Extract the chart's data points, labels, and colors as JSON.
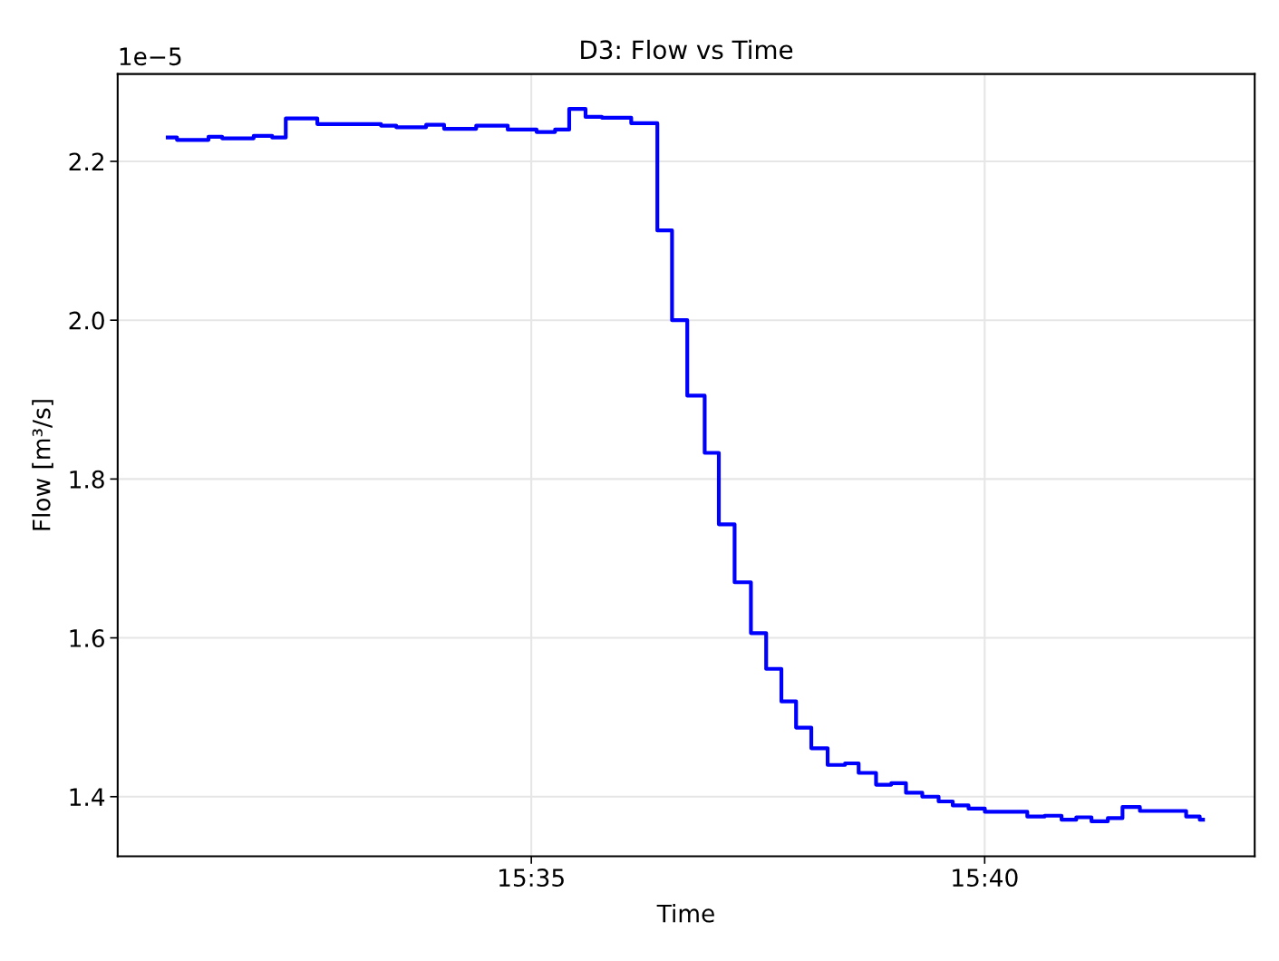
{
  "chart_data": {
    "type": "step",
    "title": "D3: Flow vs Time",
    "xlabel": "Time",
    "ylabel": "Flow [m³/s]",
    "annotations": [
      "1e−5"
    ],
    "x": [
      15.5165,
      15.5182,
      15.524,
      15.5265,
      15.5323,
      15.5357,
      15.5382,
      15.544,
      15.5557,
      15.5585,
      15.564,
      15.5673,
      15.5732,
      15.579,
      15.5843,
      15.5877,
      15.5903,
      15.5933,
      15.5963,
      15.6017,
      15.6065,
      15.6092,
      15.612,
      15.6152,
      15.6178,
      15.6207,
      15.6237,
      15.6265,
      15.6293,
      15.632,
      15.6348,
      15.6378,
      15.641,
      15.6435,
      15.6467,
      15.6495,
      15.6522,
      15.6552,
      15.6582,
      15.6608,
      15.6637,
      15.6667,
      15.6745,
      15.6777,
      15.6808,
      15.6835,
      15.6863,
      15.6893,
      15.692,
      15.6952,
      15.7037,
      15.7062,
      15.7068
    ],
    "series": [
      {
        "color": "#0000ff",
        "values": [
          2.23,
          2.227,
          2.231,
          2.229,
          2.232,
          2.23,
          2.254,
          2.247,
          2.245,
          2.243,
          2.246,
          2.241,
          2.245,
          2.24,
          2.237,
          2.24,
          2.266,
          2.256,
          2.255,
          2.248,
          2.113,
          2.0,
          1.905,
          1.833,
          1.743,
          1.67,
          1.606,
          1.561,
          1.52,
          1.487,
          1.461,
          1.44,
          1.442,
          1.43,
          1.415,
          1.417,
          1.405,
          1.4,
          1.394,
          1.389,
          1.385,
          1.381,
          1.375,
          1.376,
          1.371,
          1.374,
          1.369,
          1.373,
          1.387,
          1.382,
          1.375,
          1.371,
          1.371
        ]
      }
    ],
    "xlim": [
      15.5073,
      15.7163
    ],
    "ylim": [
      1.325,
      2.31
    ],
    "xticks": [
      {
        "value": 15.583333,
        "label": "15:35"
      },
      {
        "value": 15.666667,
        "label": "15:40"
      }
    ],
    "yticks": [
      1.4,
      1.6,
      1.8,
      {
        "value": 2,
        "label": "2.0"
      },
      2.2
    ],
    "grid": true,
    "line_style": "solid",
    "marker": "none"
  }
}
